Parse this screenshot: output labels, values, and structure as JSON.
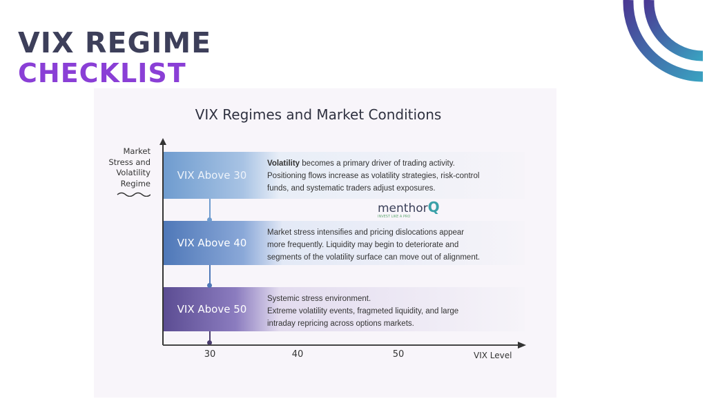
{
  "header": {
    "title_line1": "VIX REGIME",
    "title_line2": "CHECKLIST"
  },
  "diagram": {
    "title": "VIX Regimes and Market Conditions",
    "y_axis_label": [
      "Market",
      "Stress and",
      "Volatility",
      "Regime"
    ],
    "x_axis_label": "VIX Level",
    "x_ticks": [
      "30",
      "40",
      "50"
    ],
    "regimes": [
      {
        "label": "VIX Above 30",
        "bold": "Volatility",
        "lines": [
          " becomes a primary driver of trading activity.",
          "Positioning flows increase as volatility strategies, risk-control",
          "funds, and systematic traders adjust exposures."
        ],
        "color": "#6f9ccf"
      },
      {
        "label": "VIX Above 40",
        "lines": [
          "Market stress intensifies and pricing dislocations appear",
          "more frequently. Liquidity may begin to deteriorate and",
          "segments of the volatility surface can move out of alignment."
        ],
        "color": "#4f78b8"
      },
      {
        "label": "VIX Above 50",
        "lines": [
          "Systemic stress environment.",
          "Extreme volatility events, fragmeted liquidity, and large",
          "intraday repricing across options markets."
        ],
        "color": "#5c4d93"
      }
    ],
    "watermark": {
      "brand": "menthor",
      "brand_q": "Q",
      "tagline": "INVEST LIKE A PRO"
    }
  },
  "colors": {
    "title_dark": "#3d3f5a",
    "title_accent": "#8a3fd6",
    "arc_start": "#4a3a94",
    "arc_end": "#3aa0c0"
  }
}
